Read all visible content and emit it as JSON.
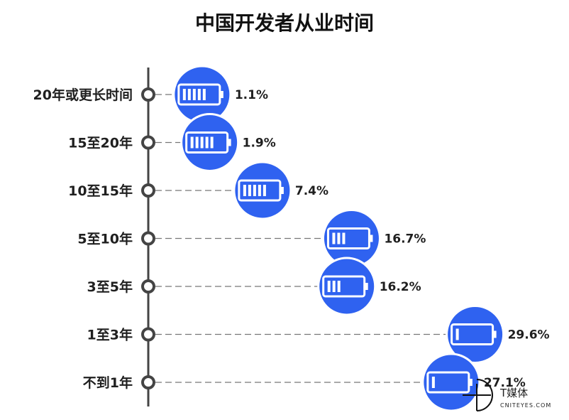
{
  "chart_data": {
    "type": "bar",
    "title": "中国开发者从业时间",
    "categories": [
      "20年或更长时间",
      "15至20年",
      "10至15年",
      "5至10年",
      "3至5年",
      "1至3年",
      "不到1年"
    ],
    "values": [
      1.1,
      1.9,
      7.4,
      16.7,
      16.2,
      29.6,
      27.1
    ],
    "value_labels": [
      "1.1%",
      "1.9%",
      "7.4%",
      "16.7%",
      "16.2%",
      "29.6%",
      "27.1%"
    ],
    "unit": "%",
    "xlim": [
      0,
      30
    ],
    "grid": false,
    "legend": "none",
    "colors": {
      "bubble": "#2f62f0",
      "axis": "#444444",
      "text": "#1f1f1f"
    }
  },
  "watermark": {
    "brand_cn": "T媒体",
    "brand_en": "CNITEYES.COM"
  }
}
